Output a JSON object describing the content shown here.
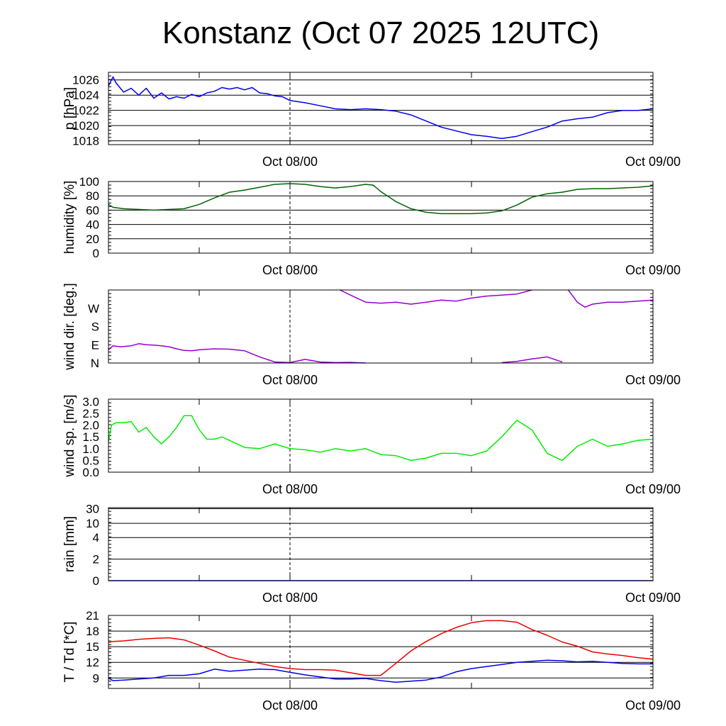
{
  "title": "Konstanz (Oct 07 2025 12UTC)",
  "colors": {
    "pressure": "#0000ee",
    "humidity": "#006400",
    "wind_dir": "#9400d3",
    "wind_speed": "#00ee00",
    "temperature": "#ee0000",
    "dewpoint": "#0000ee"
  },
  "chart_data": [
    {
      "type": "line",
      "ylabel": "p [hPa]",
      "x_ticks": [
        "Oct 08/00",
        "Oct 09/00"
      ],
      "yticks": [
        1018,
        1020,
        1022,
        1024,
        1026
      ],
      "ylim": [
        1017.5,
        1027
      ],
      "grid": true,
      "series": [
        {
          "color": "pressure",
          "x": [
            0,
            0.3,
            0.5,
            1,
            1.5,
            2,
            2.5,
            3,
            3.5,
            4,
            4.5,
            5,
            5.5,
            6,
            6.5,
            7,
            7.5,
            8,
            8.5,
            9,
            9.5,
            10,
            10.5,
            11,
            11.5,
            12,
            13,
            14,
            15,
            16,
            17,
            18,
            19,
            20,
            21,
            22,
            23,
            24,
            25,
            26,
            27,
            28,
            29,
            30,
            31,
            32,
            33,
            34,
            35,
            36
          ],
          "y": [
            1025.2,
            1026.4,
            1025.6,
            1024.4,
            1024.9,
            1024.0,
            1024.9,
            1023.6,
            1024.3,
            1023.5,
            1023.8,
            1023.6,
            1024.1,
            1023.8,
            1024.3,
            1024.5,
            1025.0,
            1024.8,
            1025.0,
            1024.7,
            1025.0,
            1024.3,
            1024.2,
            1023.9,
            1023.8,
            1023.3,
            1023.0,
            1022.6,
            1022.2,
            1022.1,
            1022.2,
            1022.1,
            1021.9,
            1021.4,
            1020.6,
            1019.8,
            1019.3,
            1018.8,
            1018.6,
            1018.3,
            1018.6,
            1019.2,
            1019.8,
            1020.6,
            1020.9,
            1021.1,
            1021.7,
            1022.0,
            1022.0,
            1022.2
          ]
        }
      ]
    },
    {
      "type": "line",
      "ylabel": "humidity [%]",
      "x_ticks": [
        "Oct 08/00",
        "Oct 09/00"
      ],
      "yticks": [
        0,
        20,
        40,
        60,
        80,
        100
      ],
      "ylim": [
        0,
        100
      ],
      "grid": true,
      "series": [
        {
          "color": "humidity",
          "x": [
            0,
            0.3,
            1,
            2,
            3,
            4,
            5,
            6,
            7,
            8,
            9,
            10,
            11,
            12,
            13,
            14,
            15,
            16,
            17,
            17.5,
            18,
            19,
            20,
            21,
            22,
            23,
            24,
            25,
            26,
            27,
            28,
            29,
            30,
            31,
            32,
            33,
            34,
            35,
            36
          ],
          "y": [
            68,
            64,
            62,
            61,
            60,
            61,
            62,
            68,
            77,
            85,
            88,
            92,
            96,
            97,
            96,
            93,
            91,
            93,
            96,
            95,
            86,
            72,
            62,
            57,
            55,
            55,
            55,
            56,
            59,
            67,
            78,
            83,
            85,
            89,
            90,
            90,
            91,
            92,
            94
          ]
        }
      ]
    },
    {
      "type": "line",
      "ylabel": "wind dir. [deg.]",
      "x_ticks": [
        "Oct 08/00",
        "Oct 09/00"
      ],
      "yticks": [
        0,
        90,
        180,
        270
      ],
      "ytick_labels": [
        "N",
        "E",
        "S",
        "W"
      ],
      "ylim": [
        0,
        360
      ],
      "grid": false,
      "series": [
        {
          "color": "wind_dir",
          "x": [
            0,
            0.3,
            0.8,
            1.5,
            2,
            2.5,
            3,
            3.5,
            4,
            4.5,
            5,
            5.5,
            6,
            7,
            8,
            9,
            10,
            11,
            12,
            13,
            14,
            15,
            16,
            17,
            18,
            19,
            19.5,
            20,
            21,
            22,
            23,
            24,
            25,
            26,
            27,
            28,
            29,
            30,
            31,
            32,
            33,
            34,
            35,
            36
          ],
          "y": [
            65,
            85,
            80,
            85,
            95,
            90,
            88,
            85,
            80,
            70,
            62,
            60,
            65,
            70,
            68,
            60,
            30,
            5,
            2,
            18,
            5,
            2,
            3,
            0,
            null,
            null,
            null,
            null,
            null,
            null,
            null,
            null,
            null,
            null,
            null,
            null,
            null,
            null,
            null,
            null,
            null,
            null,
            null,
            null
          ]
        },
        {
          "color": "wind_dir",
          "x": [
            15.3,
            16,
            17,
            18,
            19,
            20,
            21,
            22,
            23,
            24,
            25,
            26,
            27,
            28,
            28.5,
            29,
            30,
            31,
            32,
            33,
            34,
            35,
            36
          ],
          "y": [
            360,
            335,
            300,
            295,
            300,
            290,
            300,
            310,
            305,
            320,
            330,
            335,
            340,
            360,
            null,
            null,
            null,
            null,
            null,
            null,
            null,
            null,
            null
          ]
        },
        {
          "color": "wind_dir",
          "x": [
            26,
            27,
            28,
            29,
            30
          ],
          "y": [
            2,
            8,
            20,
            30,
            5
          ]
        },
        {
          "color": "wind_dir",
          "x": [
            30.4,
            31,
            31.5,
            32,
            33,
            34,
            35,
            36
          ],
          "y": [
            360,
            300,
            275,
            290,
            300,
            300,
            305,
            310
          ]
        }
      ]
    },
    {
      "type": "line",
      "ylabel": "wind sp. [m/s]",
      "x_ticks": [
        "Oct 08/00",
        "Oct 09/00"
      ],
      "yticks": [
        0.0,
        0.5,
        1.0,
        1.5,
        2.0,
        2.5,
        3.0
      ],
      "ylim": [
        0,
        3.1
      ],
      "grid": false,
      "series": [
        {
          "color": "wind_speed",
          "x": [
            0,
            0.2,
            0.5,
            1,
            1.5,
            2,
            2.5,
            3,
            3.5,
            4,
            4.5,
            5,
            5.5,
            6,
            6.5,
            7,
            7.5,
            8,
            8.5,
            9,
            10,
            11,
            12,
            13,
            14,
            15,
            16,
            17,
            18,
            19,
            20,
            21,
            22,
            23,
            24,
            25,
            26,
            27,
            28,
            29,
            30,
            31,
            32,
            33,
            34,
            35,
            36
          ],
          "y": [
            1.3,
            2.0,
            2.1,
            2.1,
            2.15,
            1.7,
            1.9,
            1.5,
            1.2,
            1.5,
            1.9,
            2.4,
            2.4,
            1.8,
            1.4,
            1.4,
            1.5,
            1.35,
            1.2,
            1.05,
            1.0,
            1.2,
            1.0,
            0.95,
            0.85,
            1.0,
            0.9,
            1.0,
            0.75,
            0.7,
            0.5,
            0.6,
            0.8,
            0.8,
            0.7,
            0.9,
            1.5,
            2.2,
            1.8,
            0.8,
            0.5,
            1.1,
            1.4,
            1.1,
            1.2,
            1.35,
            1.4
          ]
        }
      ]
    },
    {
      "type": "line",
      "ylabel": "rain [mm]",
      "x_ticks": [
        "Oct 08/00",
        "Oct 09/00"
      ],
      "yticks": [
        0,
        2,
        4,
        10,
        30
      ],
      "ylim": [
        0,
        30
      ],
      "grid": true,
      "series": [
        {
          "color": "pressure",
          "x": [
            0,
            36
          ],
          "y": [
            0,
            0
          ]
        }
      ]
    },
    {
      "type": "line",
      "ylabel": "T / Td [*C]",
      "x_ticks": [
        "Oct 08/00",
        "Oct 09/00"
      ],
      "yticks": [
        9,
        12,
        15,
        18,
        21
      ],
      "ylim": [
        7,
        21
      ],
      "grid": true,
      "series": [
        {
          "color": "temperature",
          "x": [
            0,
            0.3,
            1,
            2,
            3,
            4,
            5,
            6,
            7,
            8,
            9,
            10,
            11,
            12,
            13,
            14,
            15,
            16,
            17,
            18,
            19,
            20,
            21,
            22,
            23,
            24,
            25,
            26,
            27,
            28,
            29,
            30,
            31,
            32,
            33,
            34,
            35,
            36
          ],
          "y": [
            15.8,
            16.0,
            16.1,
            16.4,
            16.6,
            16.7,
            16.3,
            15.3,
            14.2,
            13.0,
            12.4,
            11.8,
            11.2,
            10.8,
            10.6,
            10.6,
            10.5,
            10.0,
            9.5,
            9.5,
            11.8,
            14.2,
            16.0,
            17.5,
            18.7,
            19.6,
            20.0,
            20.0,
            19.7,
            18.3,
            17.2,
            15.9,
            15.1,
            14.0,
            13.6,
            13.3,
            12.9,
            12.6
          ]
        },
        {
          "color": "dewpoint",
          "x": [
            0,
            0.3,
            1,
            2,
            3,
            4,
            5,
            6,
            7,
            8,
            9,
            10,
            11,
            12,
            13,
            14,
            15,
            16,
            17,
            18,
            19,
            20,
            21,
            22,
            23,
            24,
            25,
            26,
            27,
            28,
            29,
            30,
            31,
            32,
            33,
            34,
            35,
            36
          ],
          "y": [
            9.0,
            8.5,
            8.6,
            8.8,
            9.0,
            9.5,
            9.5,
            9.8,
            10.7,
            10.3,
            10.5,
            10.7,
            10.6,
            10.1,
            9.6,
            9.2,
            8.8,
            8.8,
            8.9,
            8.5,
            8.2,
            8.4,
            8.6,
            9.2,
            10.2,
            10.8,
            11.2,
            11.6,
            12.0,
            12.2,
            12.4,
            12.3,
            12.1,
            12.2,
            12.0,
            11.8,
            11.7,
            11.7
          ]
        }
      ]
    }
  ]
}
